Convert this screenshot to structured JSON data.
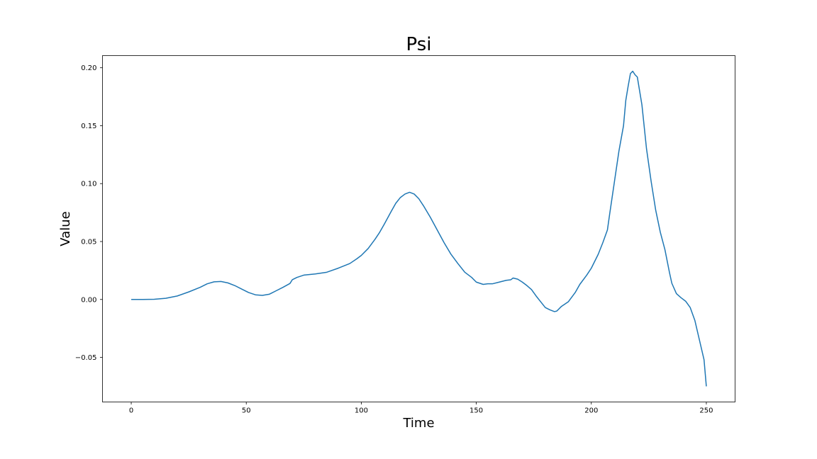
{
  "chart_data": {
    "type": "line",
    "title": "Psi",
    "xlabel": "Time",
    "ylabel": "Value",
    "xlim": [
      -12.5,
      262.5
    ],
    "ylim": [
      -0.0885,
      0.2105
    ],
    "xticks": [
      0,
      50,
      100,
      150,
      200,
      250
    ],
    "xtick_labels": [
      "0",
      "50",
      "100",
      "150",
      "200",
      "250"
    ],
    "yticks": [
      -0.05,
      0.0,
      0.05,
      0.1,
      0.15,
      0.2
    ],
    "ytick_labels": [
      "−0.05",
      "0.00",
      "0.05",
      "0.10",
      "0.15",
      "0.20"
    ],
    "grid": false,
    "line_color": "#1f77b4",
    "series": [
      {
        "x": [
          0,
          5,
          10,
          15,
          20,
          25,
          30,
          33,
          36,
          39,
          42,
          45,
          48,
          51,
          54,
          57,
          60,
          63,
          66,
          69,
          70,
          72,
          75,
          80,
          85,
          90,
          95,
          98,
          100,
          103,
          106,
          108,
          110,
          113,
          115,
          117,
          119,
          121,
          123,
          125,
          127,
          130,
          133,
          136,
          139,
          142,
          145,
          148,
          150,
          153,
          155,
          157,
          160,
          163,
          165,
          166,
          168,
          170,
          172,
          174,
          176,
          178,
          180,
          182,
          184,
          185,
          187,
          190,
          193,
          195,
          198,
          200,
          203,
          205,
          207,
          208,
          210,
          212,
          214,
          215,
          216,
          217,
          218,
          219,
          220,
          222,
          224,
          226,
          228,
          230,
          232,
          234,
          235,
          237,
          239,
          241,
          243,
          245,
          247,
          249,
          250
        ],
        "y": [
          0.0,
          0.0,
          0.0002,
          0.001,
          0.003,
          0.0065,
          0.0105,
          0.0135,
          0.0152,
          0.0155,
          0.0143,
          0.012,
          0.009,
          0.006,
          0.004,
          0.0035,
          0.0045,
          0.0075,
          0.0105,
          0.0138,
          0.017,
          0.019,
          0.021,
          0.022,
          0.0235,
          0.027,
          0.031,
          0.035,
          0.038,
          0.044,
          0.052,
          0.058,
          0.065,
          0.076,
          0.083,
          0.088,
          0.091,
          0.0925,
          0.091,
          0.087,
          0.081,
          0.071,
          0.06,
          0.049,
          0.039,
          0.031,
          0.0235,
          0.019,
          0.015,
          0.013,
          0.0135,
          0.0135,
          0.015,
          0.0165,
          0.017,
          0.0185,
          0.0175,
          0.015,
          0.012,
          0.0085,
          0.003,
          -0.002,
          -0.007,
          -0.009,
          -0.0105,
          -0.01,
          -0.006,
          -0.002,
          0.006,
          0.013,
          0.021,
          0.027,
          0.039,
          0.049,
          0.06,
          0.074,
          0.101,
          0.128,
          0.15,
          0.172,
          0.184,
          0.195,
          0.197,
          0.194,
          0.192,
          0.168,
          0.13,
          0.102,
          0.077,
          0.058,
          0.043,
          0.023,
          0.014,
          0.005,
          0.0015,
          -0.0015,
          -0.007,
          -0.018,
          -0.035,
          -0.052,
          -0.075
        ]
      }
    ]
  }
}
